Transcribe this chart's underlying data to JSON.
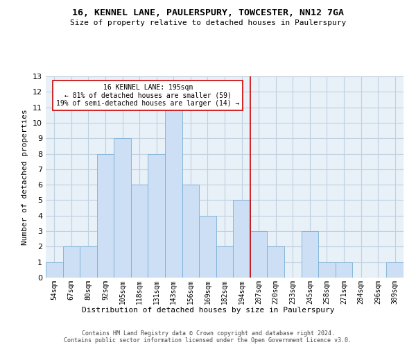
{
  "title": "16, KENNEL LANE, PAULERSPURY, TOWCESTER, NN12 7GA",
  "subtitle": "Size of property relative to detached houses in Paulerspury",
  "xlabel": "Distribution of detached houses by size in Paulerspury",
  "ylabel": "Number of detached properties",
  "categories": [
    "54sqm",
    "67sqm",
    "80sqm",
    "92sqm",
    "105sqm",
    "118sqm",
    "131sqm",
    "143sqm",
    "156sqm",
    "169sqm",
    "182sqm",
    "194sqm",
    "207sqm",
    "220sqm",
    "233sqm",
    "245sqm",
    "258sqm",
    "271sqm",
    "284sqm",
    "296sqm",
    "309sqm"
  ],
  "values": [
    1,
    2,
    2,
    8,
    9,
    6,
    8,
    11,
    6,
    4,
    2,
    5,
    3,
    2,
    0,
    3,
    1,
    1,
    0,
    0,
    1
  ],
  "bar_color": "#ccdff5",
  "bar_edge_color": "#7aafd4",
  "grid_color": "#c0d0e0",
  "background_color": "#e8f0f8",
  "vline_x": 11.5,
  "vline_color": "#cc0000",
  "annotation_line1": "16 KENNEL LANE: 195sqm",
  "annotation_line2": "← 81% of detached houses are smaller (59)",
  "annotation_line3": "19% of semi-detached houses are larger (14) →",
  "ylim": [
    0,
    13
  ],
  "yticks": [
    0,
    1,
    2,
    3,
    4,
    5,
    6,
    7,
    8,
    9,
    10,
    11,
    12,
    13
  ],
  "footer_line1": "Contains HM Land Registry data © Crown copyright and database right 2024.",
  "footer_line2": "Contains public sector information licensed under the Open Government Licence v3.0."
}
